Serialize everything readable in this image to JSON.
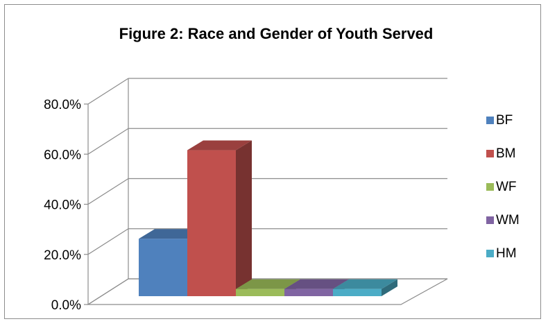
{
  "chart_data": {
    "type": "bar",
    "title": "Figure 2: Race and Gender of Youth Served",
    "categories": [
      "BF",
      "BM",
      "WF",
      "WM",
      "HM"
    ],
    "values": [
      24.0,
      61.0,
      3.0,
      3.0,
      3.0
    ],
    "ylim": [
      0,
      80
    ],
    "yticks": [
      0,
      20,
      40,
      60,
      80
    ],
    "ytick_labels": [
      "0.0%",
      "20.0%",
      "40.0%",
      "60.0%",
      "80.0%"
    ],
    "xlabel": "",
    "ylabel": "",
    "grid": true,
    "legend_position": "right",
    "style": "3d-column",
    "series": [
      {
        "name": "BF",
        "color": "#4F81BD",
        "value": 24.0
      },
      {
        "name": "BM",
        "color": "#C0504D",
        "value": 61.0
      },
      {
        "name": "WF",
        "color": "#9BBB59",
        "value": 3.0
      },
      {
        "name": "WM",
        "color": "#8064A2",
        "value": 3.0
      },
      {
        "name": "HM",
        "color": "#4BACC6",
        "value": 3.0
      }
    ]
  }
}
